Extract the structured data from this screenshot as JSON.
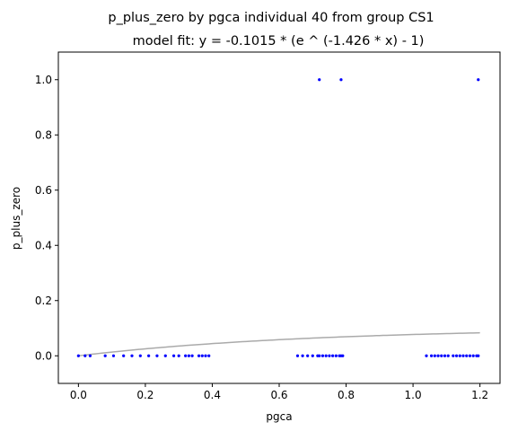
{
  "chart_data": {
    "type": "scatter",
    "title": "p_plus_zero by pgca individual 40 from group CS1",
    "subtitle": "model fit: y = -0.1015 * (e ^ (-1.426 * x) - 1)",
    "xlabel": "pgca",
    "ylabel": "p_plus_zero",
    "xlim": [
      -0.06,
      1.26
    ],
    "ylim": [
      -0.1,
      1.1
    ],
    "xticks": [
      0.0,
      0.2,
      0.4,
      0.6,
      0.8,
      1.0,
      1.2
    ],
    "yticks": [
      0.0,
      0.2,
      0.4,
      0.6,
      0.8,
      1.0
    ],
    "xtick_labels": [
      "0.0",
      "0.2",
      "0.4",
      "0.6",
      "0.8",
      "1.0",
      "1.2"
    ],
    "ytick_labels": [
      "0.0",
      "0.2",
      "0.4",
      "0.6",
      "0.8",
      "1.0"
    ],
    "grid": false,
    "colors": {
      "points": "#0000ff",
      "fit": "#aaaaaa",
      "axes": "#000000"
    },
    "model": {
      "a": -0.1015,
      "b": -1.426,
      "x_range": [
        0.0,
        1.2
      ]
    },
    "points": {
      "x": [
        0.0,
        0.02,
        0.035,
        0.08,
        0.105,
        0.135,
        0.16,
        0.185,
        0.21,
        0.235,
        0.26,
        0.285,
        0.3,
        0.32,
        0.33,
        0.34,
        0.36,
        0.37,
        0.38,
        0.39,
        0.655,
        0.67,
        0.685,
        0.7,
        0.715,
        0.72,
        0.73,
        0.74,
        0.75,
        0.76,
        0.77,
        0.78,
        0.785,
        0.79,
        1.04,
        1.055,
        1.065,
        1.075,
        1.085,
        1.095,
        1.105,
        1.12,
        1.13,
        1.14,
        1.15,
        1.16,
        1.17,
        1.18,
        1.19,
        1.195,
        0.72,
        0.785,
        1.195
      ],
      "y": [
        0,
        0,
        0,
        0,
        0,
        0,
        0,
        0,
        0,
        0,
        0,
        0,
        0,
        0,
        0,
        0,
        0,
        0,
        0,
        0,
        0,
        0,
        0,
        0,
        0,
        0,
        0,
        0,
        0,
        0,
        0,
        0,
        0,
        0,
        0,
        0,
        0,
        0,
        0,
        0,
        0,
        0,
        0,
        0,
        0,
        0,
        0,
        0,
        0,
        0,
        1,
        1,
        1
      ]
    }
  }
}
